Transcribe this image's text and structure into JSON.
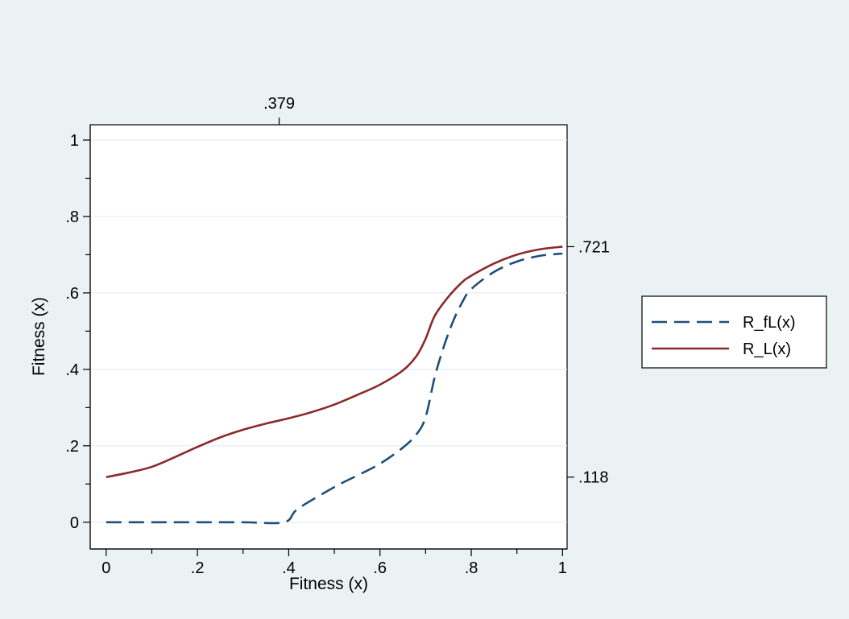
{
  "chart_data": {
    "type": "line",
    "xlabel": "Fitness (x)",
    "ylabel": "Fitness (x)",
    "xlim": [
      -0.035,
      1.01
    ],
    "ylim": [
      -0.07,
      1.04
    ],
    "x_ticks_major": [
      0,
      0.2,
      0.4,
      0.6,
      0.8,
      1
    ],
    "x_tick_labels": [
      "0",
      ".2",
      ".4",
      ".6",
      ".8",
      "1"
    ],
    "x_ticks_minor": [
      0.1,
      0.3,
      0.5,
      0.7,
      0.9
    ],
    "y_ticks_major": [
      0,
      0.2,
      0.4,
      0.6,
      0.8,
      1
    ],
    "y_tick_labels": [
      "0",
      ".2",
      ".4",
      ".6",
      ".8",
      "1"
    ],
    "y_ticks_minor": [
      0.1,
      0.3,
      0.5,
      0.7,
      0.9
    ],
    "top_axis": {
      "ticks": [
        0.379
      ],
      "labels": [
        ".379"
      ]
    },
    "right_axis": {
      "ticks": [
        0.721,
        0.118
      ],
      "labels": [
        ".721",
        ".118"
      ]
    },
    "grid": "horizontal",
    "legend_position": "right",
    "series": [
      {
        "name": "R_fL(x)",
        "style": "dashed",
        "color": "#1f4e79",
        "x": [
          0,
          0.1,
          0.2,
          0.3,
          0.39,
          0.42,
          0.5,
          0.55,
          0.6,
          0.65,
          0.68,
          0.7,
          0.72,
          0.74,
          0.76,
          0.78,
          0.8,
          0.85,
          0.9,
          0.95,
          1.0
        ],
        "y": [
          0,
          0,
          0,
          0,
          0,
          0.035,
          0.092,
          0.122,
          0.153,
          0.195,
          0.23,
          0.275,
          0.38,
          0.46,
          0.525,
          0.575,
          0.61,
          0.655,
          0.682,
          0.697,
          0.703
        ]
      },
      {
        "name": "R_L(x)",
        "style": "solid",
        "color": "#8b2a2a",
        "x": [
          0,
          0.05,
          0.1,
          0.15,
          0.2,
          0.25,
          0.3,
          0.35,
          0.4,
          0.45,
          0.5,
          0.55,
          0.6,
          0.65,
          0.68,
          0.7,
          0.72,
          0.75,
          0.78,
          0.8,
          0.85,
          0.9,
          0.95,
          1.0
        ],
        "y": [
          0.118,
          0.13,
          0.145,
          0.17,
          0.197,
          0.222,
          0.242,
          0.258,
          0.272,
          0.288,
          0.308,
          0.333,
          0.36,
          0.397,
          0.435,
          0.48,
          0.54,
          0.59,
          0.628,
          0.645,
          0.677,
          0.7,
          0.714,
          0.721
        ]
      }
    ]
  }
}
